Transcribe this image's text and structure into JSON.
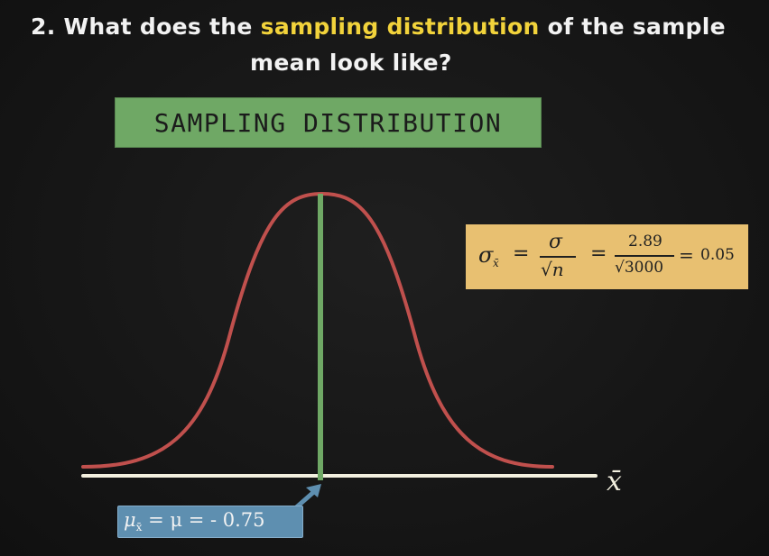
{
  "question": {
    "number": "2.",
    "before": "What does the",
    "highlight": "sampling distribution",
    "after": "of the sample",
    "line2": "mean look like?"
  },
  "title_label": "SAMPLING DISTRIBUTION",
  "formula": {
    "lhs": "σ",
    "lhs_sub": "x̄",
    "eq1": "=",
    "num1": "σ",
    "den1": "√n",
    "eq2": "=",
    "num2": "2.89",
    "den2": "√3000",
    "eq3": "=",
    "result": "0.05"
  },
  "mean_label": {
    "mu": "μ",
    "mu_sub": "x̄",
    "rest": "= μ = - 0.75"
  },
  "axis_label": "x̄",
  "colors": {
    "curve": "#c0504d",
    "center_line": "#6fa865",
    "axis": "#f3f0df",
    "arrow": "#5e8fb0",
    "highlight": "#f2d33b"
  }
}
